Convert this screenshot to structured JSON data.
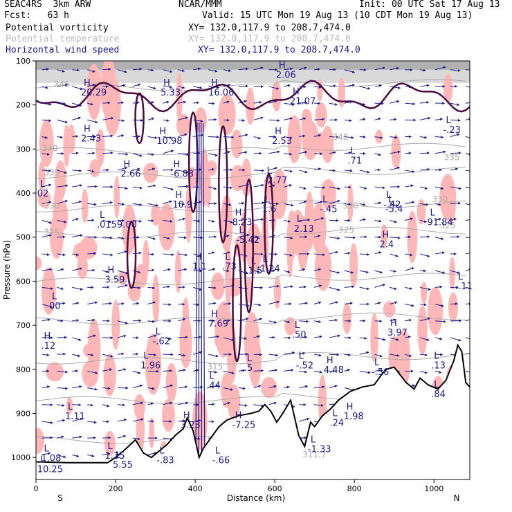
{
  "header": {
    "model": "SEAC4RS  3km ARW",
    "fcst": "Fcst:   63 h",
    "center": "NCAR/MMM",
    "init": "Init: 00 UTC Sat 17 Aug 13",
    "valid": "Valid: 15 UTC Mon 19 Aug 13 (10 CDT Mon 19 Aug 13)",
    "field1": "Potential vorticity",
    "field2": "Potential temperature",
    "field3": "Horizontal wind speed",
    "xy1": "XY= 132.0,117.9 to 208.7,474.0",
    "xy2": "XY= 132.0,117.9 to 208.7,474.0",
    "xy3": "XY= 132.0,117.9 to 208.7,474.0"
  },
  "colors": {
    "pv_positive": "#ffb7b7",
    "pv_contour": "#4a0a3f",
    "theta": "#aaaaaa",
    "wind": "#1a1a8c",
    "terrain": "#000000"
  },
  "chart_data": {
    "type": "cross-section",
    "xlabel": "Distance (km)",
    "ylabel": "Pressure (hPa)",
    "xlim": [
      0,
      1090
    ],
    "ylim": [
      1050,
      100
    ],
    "xticks": [
      "0",
      "200",
      "400",
      "600",
      "800",
      "1000"
    ],
    "xtick_values": [
      0,
      200,
      400,
      600,
      800,
      1000
    ],
    "yticks": [
      "100",
      "200",
      "300",
      "400",
      "500",
      "600",
      "700",
      "800",
      "900",
      "1000"
    ],
    "ytick_values": [
      100,
      200,
      300,
      400,
      500,
      600,
      700,
      800,
      900,
      1000
    ],
    "x_end_labels": {
      "left": "S",
      "right": "N"
    },
    "theta_labels": [
      {
        "text": "345",
        "x": 45,
        "p": 160
      },
      {
        "text": "340",
        "x": 15,
        "p": 305
      },
      {
        "text": "335",
        "x": 20,
        "p": 360
      },
      {
        "text": "330",
        "x": 20,
        "p": 435
      },
      {
        "text": "325",
        "x": 20,
        "p": 495
      },
      {
        "text": "340",
        "x": 745,
        "p": 280
      },
      {
        "text": "335",
        "x": 1025,
        "p": 325
      },
      {
        "text": "330",
        "x": 995,
        "p": 420
      },
      {
        "text": "325",
        "x": 1015,
        "p": 480
      },
      {
        "text": "330",
        "x": 770,
        "p": 435
      },
      {
        "text": "325",
        "x": 760,
        "p": 490
      },
      {
        "text": "315",
        "x": 430,
        "p": 800
      },
      {
        "text": "311.7",
        "x": 670,
        "p": 1000
      }
    ],
    "hl_labels": [
      {
        "mark": "H",
        "value": "20.29",
        "x": 120,
        "p": 175
      },
      {
        "mark": "H",
        "value": "2.43",
        "x": 120,
        "p": 280
      },
      {
        "mark": "H",
        "value": "2.66",
        "x": 220,
        "p": 360
      },
      {
        "mark": "H",
        "value": "3.59",
        "x": 180,
        "p": 600
      },
      {
        "mark": "L",
        "value": "00",
        "x": 40,
        "p": 660
      },
      {
        "mark": "L",
        "value": "02",
        "x": 10,
        "p": 405
      },
      {
        "mark": "H",
        "value": ".12",
        "x": 20,
        "p": 750
      },
      {
        "mark": "L",
        "value": "1.11",
        "x": 80,
        "p": 910
      },
      {
        "mark": "L",
        "value": ".0159.00",
        "x": 160,
        "p": 475
      },
      {
        "mark": "H",
        "value": "5.33",
        "x": 320,
        "p": 175
      },
      {
        "mark": "H",
        "value": "10.98",
        "x": 310,
        "p": 285
      },
      {
        "mark": "H",
        "value": "-6.83",
        "x": 345,
        "p": 360
      },
      {
        "mark": "H",
        "value": "10.9",
        "x": 350,
        "p": 430
      },
      {
        "mark": "L",
        "value": "-.62",
        "x": 300,
        "p": 740
      },
      {
        "mark": "L",
        "value": "1.96",
        "x": 270,
        "p": 795
      },
      {
        "mark": "L",
        "value": "1.35",
        "x": 180,
        "p": 1000
      },
      {
        "mark": "L",
        "value": "-.83",
        "x": 310,
        "p": 1010
      },
      {
        "mark": "H",
        "value": "7.69",
        "x": 440,
        "p": 700
      },
      {
        "mark": "L",
        "value": ".44",
        "x": 435,
        "p": 840
      },
      {
        "mark": "H",
        "value": "-7.25",
        "x": 500,
        "p": 930
      },
      {
        "mark": "L",
        "value": ".73",
        "x": 475,
        "p": 570
      },
      {
        "mark": "H",
        "value": "8.23",
        "x": 500,
        "p": 470
      },
      {
        "mark": "L",
        "value": "-5.42",
        "x": 510,
        "p": 510
      },
      {
        "mark": "H",
        "value": "16.06",
        "x": 440,
        "p": 175
      },
      {
        "mark": "H",
        "value": "2.06",
        "x": 610,
        "p": 135
      },
      {
        "mark": "H",
        "value": "21.07",
        "x": 645,
        "p": 195
      },
      {
        "mark": "H",
        "value": "2.53",
        "x": 600,
        "p": 285
      },
      {
        "mark": "L",
        "value": "-2.77",
        "x": 580,
        "p": 375
      },
      {
        "mark": "L",
        "value": "1.6",
        "x": 575,
        "p": 440
      },
      {
        "mark": "L",
        "value": "1.24",
        "x": 570,
        "p": 575
      },
      {
        "mark": "L",
        "value": "2.13",
        "x": 655,
        "p": 485
      },
      {
        "mark": "L",
        "value": "-.45",
        "x": 720,
        "p": 440
      },
      {
        "mark": "L",
        "value": ".50",
        "x": 650,
        "p": 725
      },
      {
        "mark": "L",
        "value": "-.52",
        "x": 660,
        "p": 795
      },
      {
        "mark": "H",
        "value": "4.48",
        "x": 730,
        "p": 805
      },
      {
        "mark": "L",
        "value": ".24",
        "x": 745,
        "p": 925
      },
      {
        "mark": "H",
        "value": "1.98",
        "x": 780,
        "p": 910
      },
      {
        "mark": "L",
        "value": ".71",
        "x": 790,
        "p": 330
      },
      {
        "mark": "L",
        "value": "-.42",
        "x": 880,
        "p": 430
      },
      {
        "mark": "L",
        "value": "-5.4",
        "x": 885,
        "p": 440
      },
      {
        "mark": "H",
        "value": "2.4",
        "x": 870,
        "p": 520
      },
      {
        "mark": "H",
        "value": "3.97",
        "x": 890,
        "p": 720
      },
      {
        "mark": "L",
        "value": "-.56",
        "x": 850,
        "p": 810
      },
      {
        "mark": "L",
        "value": "91.84",
        "x": 990,
        "p": 470
      },
      {
        "mark": "L",
        "value": ".13",
        "x": 1000,
        "p": 795
      },
      {
        "mark": "L",
        "value": "-.23",
        "x": 1030,
        "p": 260
      },
      {
        "mark": "L",
        "value": "-.11",
        "x": 1060,
        "p": 615
      },
      {
        "mark": "H",
        "value": "3.23",
        "x": 370,
        "p": 930
      },
      {
        "mark": "L",
        "value": "-.66",
        "x": 450,
        "p": 1010
      },
      {
        "mark": "L",
        "value": "-1.33",
        "x": 690,
        "p": 985
      },
      {
        "mark": "L",
        "value": ".84",
        "x": 1000,
        "p": 860
      },
      {
        "mark": "L",
        "value": "1.5",
        "x": 540,
        "p": 580
      },
      {
        "mark": "H",
        "value": "1.1",
        "x": 400,
        "p": 570
      },
      {
        "mark": "L",
        "value": ".5",
        "x": 530,
        "p": 800
      },
      {
        "mark": "L",
        "value": "10.25",
        "x": 10,
        "p": 1030
      },
      {
        "mark": "L",
        "value": "1.08",
        "x": 20,
        "p": 1005
      },
      {
        "mark": "L",
        "value": "5.55",
        "x": 200,
        "p": 1020
      }
    ],
    "terrain": [
      [
        0,
        1010
      ],
      [
        80,
        1012
      ],
      [
        180,
        1012
      ],
      [
        200,
        1000
      ],
      [
        220,
        985
      ],
      [
        250,
        960
      ],
      [
        270,
        990
      ],
      [
        290,
        1000
      ],
      [
        310,
        985
      ],
      [
        330,
        970
      ],
      [
        350,
        950
      ],
      [
        370,
        935
      ],
      [
        380,
        910
      ],
      [
        395,
        940
      ],
      [
        410,
        1000
      ],
      [
        420,
        980
      ],
      [
        440,
        955
      ],
      [
        460,
        930
      ],
      [
        480,
        915
      ],
      [
        510,
        905
      ],
      [
        540,
        900
      ],
      [
        560,
        895
      ],
      [
        575,
        880
      ],
      [
        590,
        895
      ],
      [
        605,
        920
      ],
      [
        620,
        900
      ],
      [
        640,
        870
      ],
      [
        660,
        950
      ],
      [
        675,
        975
      ],
      [
        690,
        920
      ],
      [
        700,
        930
      ],
      [
        720,
        905
      ],
      [
        740,
        890
      ],
      [
        760,
        870
      ],
      [
        790,
        850
      ],
      [
        820,
        840
      ],
      [
        850,
        835
      ],
      [
        870,
        810
      ],
      [
        880,
        800
      ],
      [
        900,
        795
      ],
      [
        930,
        830
      ],
      [
        950,
        845
      ],
      [
        965,
        820
      ],
      [
        985,
        835
      ],
      [
        1010,
        845
      ],
      [
        1030,
        825
      ],
      [
        1050,
        780
      ],
      [
        1060,
        745
      ],
      [
        1070,
        760
      ],
      [
        1080,
        830
      ],
      [
        1090,
        840
      ]
    ]
  }
}
